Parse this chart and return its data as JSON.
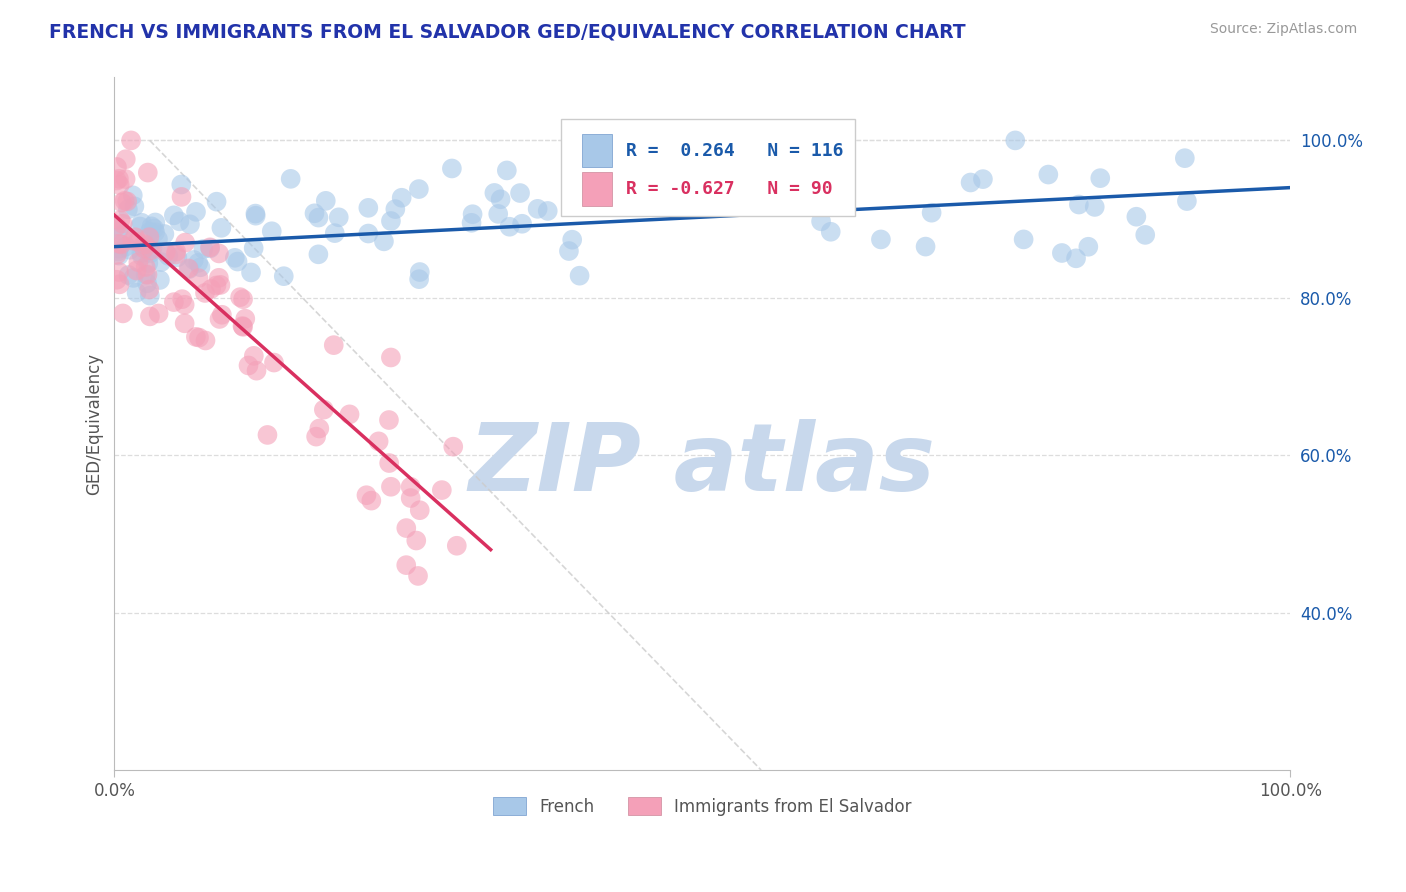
{
  "title": "FRENCH VS IMMIGRANTS FROM EL SALVADOR GED/EQUIVALENCY CORRELATION CHART",
  "source": "Source: ZipAtlas.com",
  "ylabel": "GED/Equivalency",
  "x_tick_labels": [
    "0.0%",
    "100.0%"
  ],
  "y_tick_labels": [
    "40.0%",
    "60.0%",
    "80.0%",
    "100.0%"
  ],
  "y_tick_values": [
    40,
    60,
    80,
    100
  ],
  "legend_labels": [
    "French",
    "Immigrants from El Salvador"
  ],
  "R_french": 0.264,
  "N_french": 116,
  "R_salvador": -0.627,
  "N_salvador": 90,
  "blue_color": "#A8C8E8",
  "blue_line_color": "#1A5AAA",
  "pink_color": "#F4A0B8",
  "pink_line_color": "#D93060",
  "dashed_line_color": "#CCCCCC",
  "title_color": "#2233AA",
  "source_color": "#999999",
  "legend_R_blue_color": "#1A5AAA",
  "legend_R_pink_color": "#D93060",
  "background_color": "#FFFFFF",
  "watermark_text": "ZIP atlas",
  "watermark_color": "#C8D8EC",
  "xlim": [
    0,
    100
  ],
  "ylim": [
    20,
    108
  ],
  "blue_line_x": [
    0,
    100
  ],
  "blue_line_y": [
    86.5,
    94.0
  ],
  "pink_line_x": [
    0,
    32
  ],
  "pink_line_y": [
    90.5,
    48.0
  ],
  "diag_line_x": [
    3,
    55
  ],
  "diag_line_y": [
    100,
    20
  ]
}
